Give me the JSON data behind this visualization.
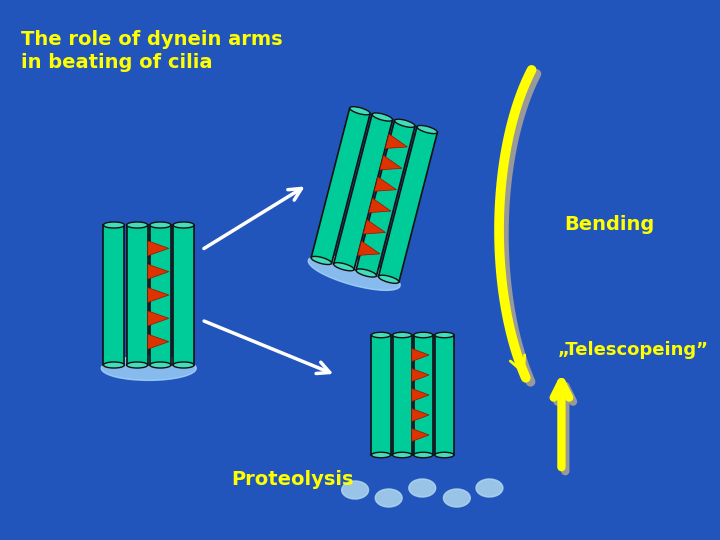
{
  "bg_color": "#2255bb",
  "title": "The role of dynein arms\nin beating of cilia",
  "title_color": "#ffff00",
  "title_fontsize": 14,
  "bending_label": "Bending",
  "telescoping_label": "„Telescopeing”",
  "proteolysis_label": "Proteolysis",
  "label_color": "#ffff00",
  "label_fontsize": 14,
  "cilia_color": "#00cc99",
  "cilia_edge": "#111111",
  "cilia_cap": "#44ddbb",
  "arm_color": "#dd3300",
  "arm_edge": "#991100",
  "base_color": "#aaddff",
  "white_arrow": "#ffffff",
  "yellow_arrow": "#ffff00",
  "gray_shadow": "#999999"
}
